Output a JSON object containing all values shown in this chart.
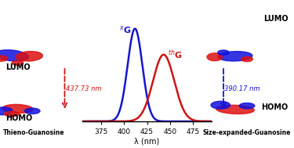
{
  "xlabel": "λ (nm)",
  "xG_peak": 412,
  "xG_sigma": 8.0,
  "xG_amplitude": 1.0,
  "xG_color": "#1515cc",
  "thG_peak": 443,
  "thG_sigma": 11.5,
  "thG_amplitude": 0.72,
  "thG_color": "#cc1515",
  "xmin": 355,
  "xmax": 495,
  "annotation_xG": "437.73 nm",
  "annotation_thG": "390.17 nm",
  "label_left_top": "LUMO",
  "label_left_bottom": "HOMO",
  "label_right_top": "LUMO",
  "label_right_bottom": "HOMO",
  "label_left_molecule": "Thieno-Guanosine",
  "label_right_molecule": "Size-expanded-Guanosine",
  "bg_color": "#ffffff",
  "xticks": [
    375,
    400,
    425,
    450,
    475
  ]
}
